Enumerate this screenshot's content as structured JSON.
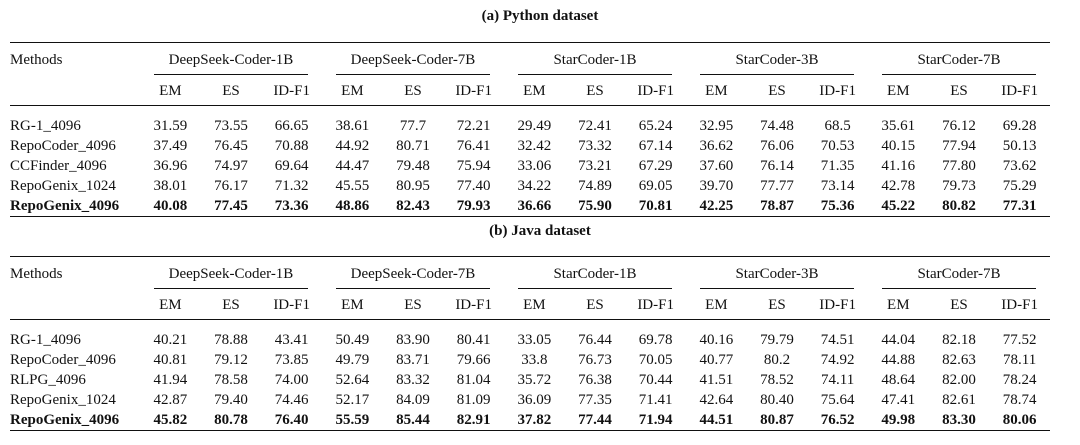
{
  "sections": [
    {
      "caption": "(a) Python dataset",
      "methods_header": "Methods",
      "models": [
        "DeepSeek-Coder-1B",
        "DeepSeek-Coder-7B",
        "StarCoder-1B",
        "StarCoder-3B",
        "StarCoder-7B"
      ],
      "metrics": [
        "EM",
        "ES",
        "ID-F1"
      ],
      "rows": [
        {
          "method": "RG-1_4096",
          "values": [
            "31.59",
            "73.55",
            "66.65",
            "38.61",
            "77.7",
            "72.21",
            "29.49",
            "72.41",
            "65.24",
            "32.95",
            "74.48",
            "68.5",
            "35.61",
            "76.12",
            "69.28"
          ]
        },
        {
          "method": "RepoCoder_4096",
          "values": [
            "37.49",
            "76.45",
            "70.88",
            "44.92",
            "80.71",
            "76.41",
            "32.42",
            "73.32",
            "67.14",
            "36.62",
            "76.06",
            "70.53",
            "40.15",
            "77.94",
            "50.13"
          ]
        },
        {
          "method": "CCFinder_4096",
          "values": [
            "36.96",
            "74.97",
            "69.64",
            "44.47",
            "79.48",
            "75.94",
            "33.06",
            "73.21",
            "67.29",
            "37.60",
            "76.14",
            "71.35",
            "41.16",
            "77.80",
            "73.62"
          ]
        },
        {
          "method": "RepoGenix_1024",
          "values": [
            "38.01",
            "76.17",
            "71.32",
            "45.55",
            "80.95",
            "77.40",
            "34.22",
            "74.89",
            "69.05",
            "39.70",
            "77.77",
            "73.14",
            "42.78",
            "79.73",
            "75.29"
          ]
        },
        {
          "method": "RepoGenix_4096",
          "values": [
            "40.08",
            "77.45",
            "73.36",
            "48.86",
            "82.43",
            "79.93",
            "36.66",
            "75.90",
            "70.81",
            "42.25",
            "78.87",
            "75.36",
            "45.22",
            "80.82",
            "77.31"
          ]
        }
      ]
    },
    {
      "caption": "(b) Java dataset",
      "methods_header": "Methods",
      "models": [
        "DeepSeek-Coder-1B",
        "DeepSeek-Coder-7B",
        "StarCoder-1B",
        "StarCoder-3B",
        "StarCoder-7B"
      ],
      "metrics": [
        "EM",
        "ES",
        "ID-F1"
      ],
      "rows": [
        {
          "method": "RG-1_4096",
          "values": [
            "40.21",
            "78.88",
            "43.41",
            "50.49",
            "83.90",
            "80.41",
            "33.05",
            "76.44",
            "69.78",
            "40.16",
            "79.79",
            "74.51",
            "44.04",
            "82.18",
            "77.52"
          ]
        },
        {
          "method": "RepoCoder_4096",
          "values": [
            "40.81",
            "79.12",
            "73.85",
            "49.79",
            "83.71",
            "79.66",
            "33.8",
            "76.73",
            "70.05",
            "40.77",
            "80.2",
            "74.92",
            "44.88",
            "82.63",
            "78.11"
          ]
        },
        {
          "method": "RLPG_4096",
          "values": [
            "41.94",
            "78.58",
            "74.00",
            "52.64",
            "83.32",
            "81.04",
            "35.72",
            "76.38",
            "70.44",
            "41.51",
            "78.52",
            "74.11",
            "48.64",
            "82.00",
            "78.24"
          ]
        },
        {
          "method": "RepoGenix_1024",
          "values": [
            "42.87",
            "79.40",
            "74.46",
            "52.17",
            "84.09",
            "81.09",
            "36.09",
            "77.35",
            "71.41",
            "42.64",
            "80.40",
            "75.64",
            "47.41",
            "82.61",
            "78.74"
          ]
        },
        {
          "method": "RepoGenix_4096",
          "values": [
            "45.82",
            "80.78",
            "76.40",
            "55.59",
            "85.44",
            "82.91",
            "37.82",
            "77.44",
            "71.94",
            "44.51",
            "80.87",
            "76.52",
            "49.98",
            "83.30",
            "80.06"
          ]
        }
      ]
    }
  ]
}
